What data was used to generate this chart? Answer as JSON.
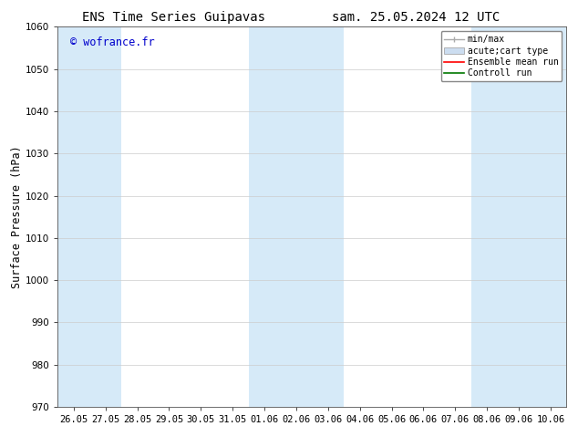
{
  "title_left": "ENS Time Series Guipavas",
  "title_right": "sam. 25.05.2024 12 UTC",
  "ylabel": "Surface Pressure (hPa)",
  "ylim": [
    970,
    1060
  ],
  "yticks": [
    970,
    980,
    990,
    1000,
    1010,
    1020,
    1030,
    1040,
    1050,
    1060
  ],
  "xtick_labels": [
    "26.05",
    "27.05",
    "28.05",
    "29.05",
    "30.05",
    "31.05",
    "01.06",
    "02.06",
    "03.06",
    "04.06",
    "05.06",
    "06.06",
    "07.06",
    "08.06",
    "09.06",
    "10.06"
  ],
  "watermark": "© wofrance.fr",
  "watermark_color": "#0000cc",
  "bg_color": "#ffffff",
  "plot_bg_color": "#ffffff",
  "shade_color": "#d6eaf8",
  "shade_alpha": 1.0,
  "shaded_indices": [
    0,
    1,
    6,
    7,
    8,
    13,
    14,
    15
  ],
  "legend_labels": [
    "min/max",
    "acute;cart type",
    "Ensemble mean run",
    "Controll run"
  ],
  "legend_colors": [
    "#aaaaaa",
    "#ccddf0",
    "#ff0000",
    "#007700"
  ],
  "grid_color": "#cccccc",
  "title_fontsize": 10,
  "tick_fontsize": 7.5,
  "ylabel_fontsize": 8.5,
  "watermark_fontsize": 8.5
}
